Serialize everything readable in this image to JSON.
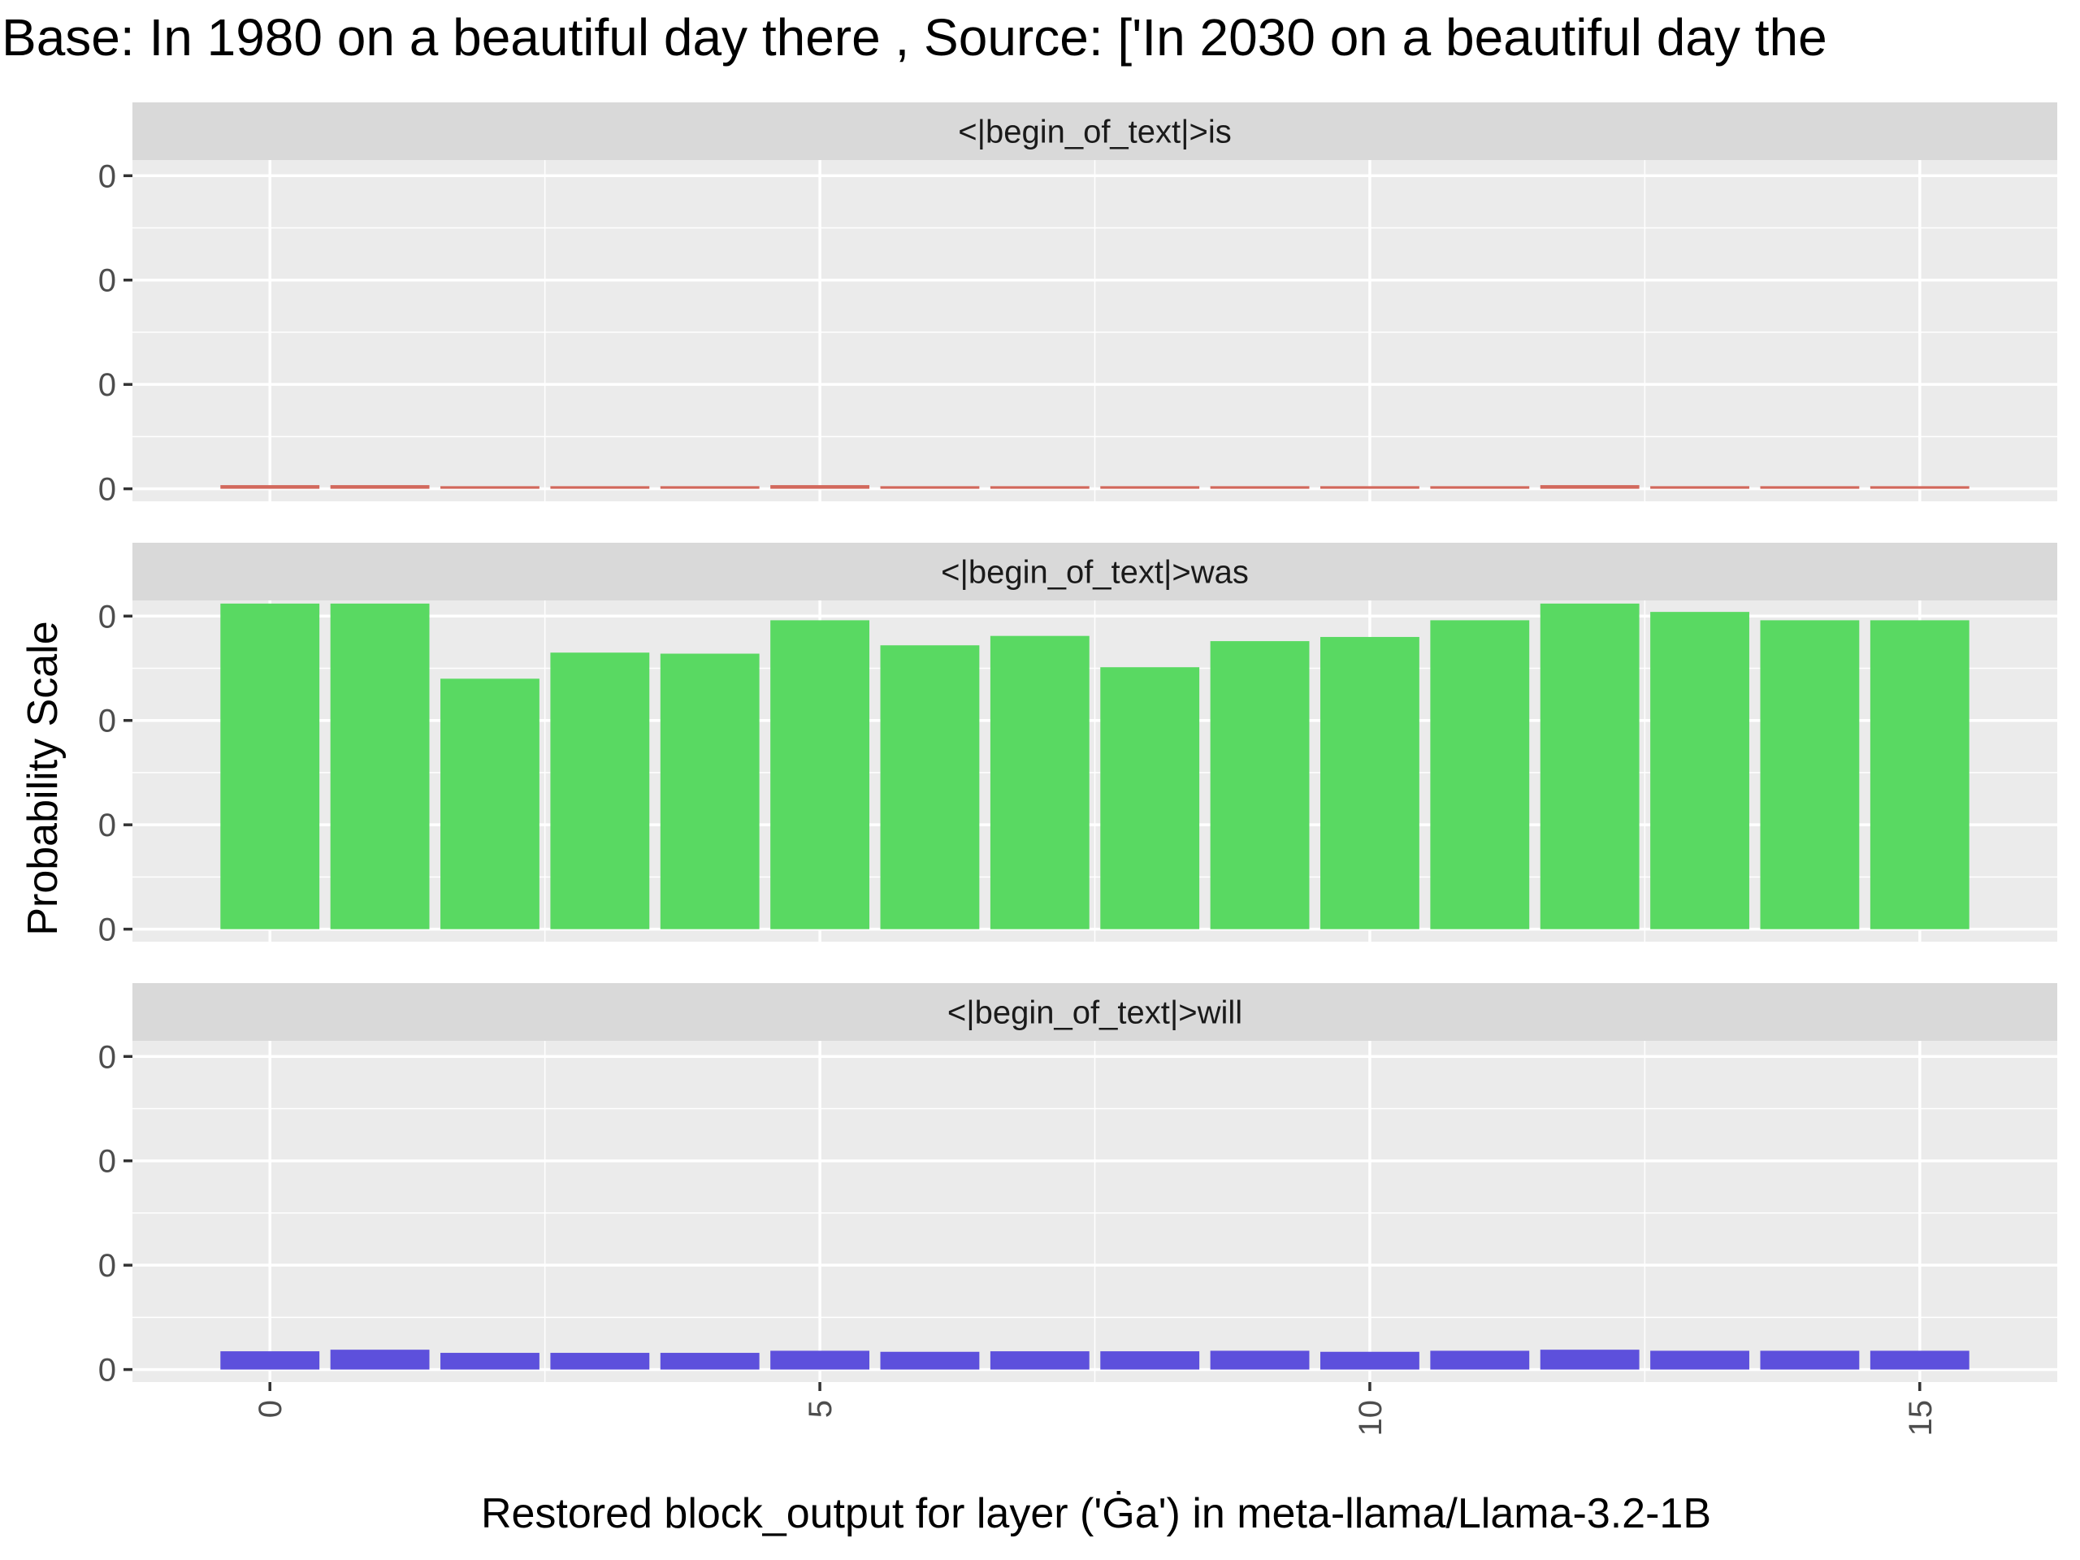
{
  "figure": {
    "title": "Base: In 1980 on a beautiful day there , Source: ['In 2030 on a beautiful day the",
    "xlabel": "Restored block_output for layer ('Ġa') in meta-llama/Llama-3.2-1B",
    "ylabel": "Probability Scale"
  },
  "chart_data": {
    "type": "bar",
    "facet_direction": "vertical",
    "x_ticks": [
      "0",
      "5",
      "10",
      "15"
    ],
    "x_tick_values": [
      0,
      5,
      10,
      15
    ],
    "x": [
      0,
      1,
      2,
      3,
      4,
      5,
      6,
      7,
      8,
      9,
      10,
      11,
      12,
      13,
      14,
      15
    ],
    "xlim": [
      -1.25,
      16.25
    ],
    "y_tick_labels": [
      "0",
      "0",
      "0",
      "0"
    ],
    "y_tick_values": [
      0,
      0.1,
      0.2,
      0.3
    ],
    "ylim": [
      -0.012,
      0.315
    ],
    "grid": true,
    "legend": "none",
    "panels": [
      {
        "strip": "<|begin_of_text|>is",
        "color": "#D2685C",
        "values": [
          0.0035,
          0.0035,
          0.0025,
          0.0025,
          0.0025,
          0.0035,
          0.0025,
          0.0025,
          0.0025,
          0.0025,
          0.0025,
          0.0025,
          0.0035,
          0.0025,
          0.0025,
          0.0025
        ]
      },
      {
        "strip": "<|begin_of_text|>was",
        "color": "#59D962",
        "values": [
          0.312,
          0.312,
          0.24,
          0.265,
          0.264,
          0.296,
          0.272,
          0.281,
          0.251,
          0.276,
          0.28,
          0.296,
          0.312,
          0.304,
          0.296,
          0.296
        ]
      },
      {
        "strip": "<|begin_of_text|>will",
        "color": "#5D50DC",
        "values": [
          0.0175,
          0.019,
          0.016,
          0.016,
          0.016,
          0.018,
          0.017,
          0.0175,
          0.0175,
          0.018,
          0.017,
          0.018,
          0.019,
          0.018,
          0.018,
          0.018
        ]
      }
    ]
  }
}
